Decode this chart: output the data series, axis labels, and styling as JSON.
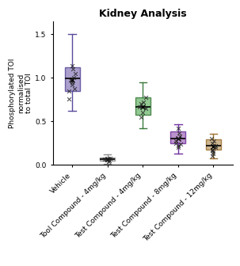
{
  "title": "Kidney Analysis",
  "ylabel": "Phosphorylated TOI\nnormalised\nto total TOI",
  "categories": [
    "Vehicle",
    "Tool Compound - 4mg/kg",
    "Test Compound - 4mg/kg",
    "Test Compound - 8mg/kg",
    "Test Compound - 12mg/kg"
  ],
  "box_data": [
    {
      "q1": 0.85,
      "median": 0.99,
      "q3": 1.12,
      "whislo": 0.62,
      "whishi": 1.5,
      "mean": 0.98
    },
    {
      "q1": 0.045,
      "median": 0.063,
      "q3": 0.082,
      "whislo": 0.01,
      "whishi": 0.12,
      "mean": 0.063
    },
    {
      "q1": 0.58,
      "median": 0.67,
      "q3": 0.78,
      "whislo": 0.42,
      "whishi": 0.95,
      "mean": 0.67
    },
    {
      "q1": 0.245,
      "median": 0.3,
      "q3": 0.385,
      "whislo": 0.13,
      "whishi": 0.47,
      "mean": 0.3
    },
    {
      "q1": 0.175,
      "median": 0.22,
      "q3": 0.295,
      "whislo": 0.08,
      "whishi": 0.355,
      "mean": 0.21
    }
  ],
  "scatter_points": [
    [
      0.76,
      0.88,
      0.92,
      1.0,
      1.05,
      1.1,
      1.14,
      0.85,
      0.98,
      0.95
    ],
    [
      0.04,
      0.05,
      0.06,
      0.065,
      0.07,
      0.08
    ],
    [
      0.55,
      0.6,
      0.65,
      0.67,
      0.72,
      0.78,
      0.7
    ],
    [
      0.2,
      0.24,
      0.28,
      0.3,
      0.33,
      0.37,
      0.42,
      0.25,
      0.22
    ],
    [
      0.1,
      0.13,
      0.17,
      0.2,
      0.22,
      0.25,
      0.28,
      0.3,
      0.15,
      0.18
    ]
  ],
  "box_colors": [
    "#9b8ec4",
    "#c0c0c0",
    "#7fbf7f",
    "#b07fc4",
    "#c4a97d"
  ],
  "box_edge_colors": [
    "#5a4a9a",
    "#909090",
    "#3a7a3a",
    "#7030a0",
    "#a07030"
  ],
  "ylim": [
    0.0,
    1.65
  ],
  "yticks": [
    0.0,
    0.5,
    1.0,
    1.5
  ],
  "background_color": "#ffffff",
  "title_fontsize": 9,
  "label_fontsize": 6.5,
  "tick_fontsize": 6.5
}
